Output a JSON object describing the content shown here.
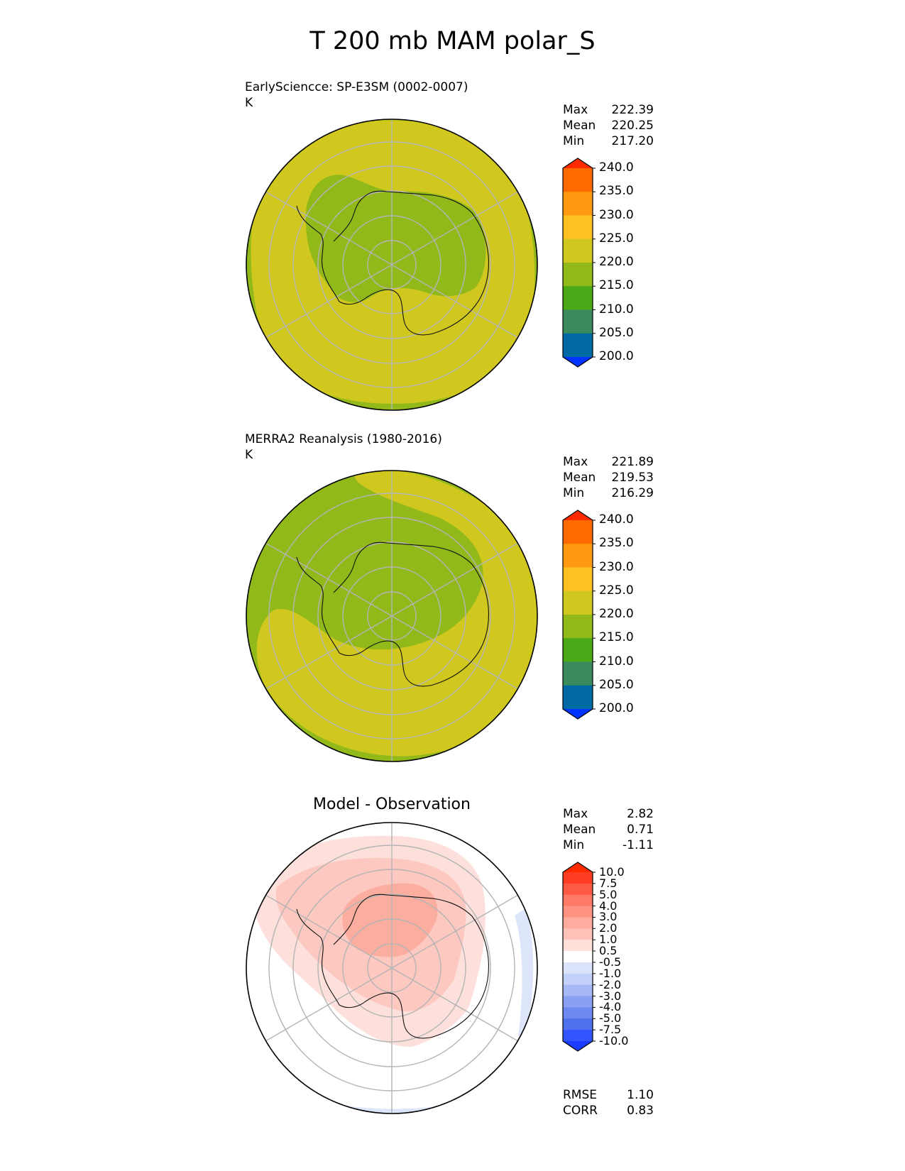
{
  "figure": {
    "title": "T 200 mb MAM polar_S"
  },
  "chart_data": [
    {
      "type": "heatmap",
      "projection": "south-polar-stereographic",
      "title": "EarlySciencce: SP-E3SM (0002-0007)",
      "units": "K",
      "stats": [
        {
          "label": "Max",
          "value": "222.39"
        },
        {
          "label": "Mean",
          "value": "220.25"
        },
        {
          "label": "Min",
          "value": "217.20"
        }
      ],
      "colorbar": {
        "ticks": [
          "240.0",
          "235.0",
          "230.0",
          "225.0",
          "220.0",
          "215.0",
          "210.0",
          "205.0",
          "200.0"
        ],
        "colors": [
          "#ff2a00",
          "#ff6a00",
          "#ff9a10",
          "#fdc124",
          "#d0c81e",
          "#92b91a",
          "#4aa715",
          "#3a8a5e",
          "#0169a3",
          "#0033ff"
        ]
      },
      "field_colors": {
        "outer": "#92b91a",
        "ring": "#d0c81e",
        "inner": "#92b91a"
      }
    },
    {
      "type": "heatmap",
      "projection": "south-polar-stereographic",
      "title": "MERRA2 Reanalysis (1980-2016)",
      "units": "K",
      "stats": [
        {
          "label": "Max",
          "value": "221.89"
        },
        {
          "label": "Mean",
          "value": "219.53"
        },
        {
          "label": "Min",
          "value": "216.29"
        }
      ],
      "colorbar": {
        "ticks": [
          "240.0",
          "235.0",
          "230.0",
          "225.0",
          "220.0",
          "215.0",
          "210.0",
          "205.0",
          "200.0"
        ],
        "colors": [
          "#ff2a00",
          "#ff6a00",
          "#ff9a10",
          "#fdc124",
          "#d0c81e",
          "#92b91a",
          "#4aa715",
          "#3a8a5e",
          "#0169a3",
          "#0033ff"
        ]
      },
      "field_colors": {
        "outer": "#92b91a",
        "ring": "#d0c81e",
        "inner": "#92b91a"
      }
    },
    {
      "type": "heatmap",
      "projection": "south-polar-stereographic",
      "title": "Model - Observation",
      "stats": [
        {
          "label": "Max",
          "value": "2.82"
        },
        {
          "label": "Mean",
          "value": "0.71"
        },
        {
          "label": "Min",
          "value": "-1.11"
        }
      ],
      "metrics": [
        {
          "label": "RMSE",
          "value": "1.10"
        },
        {
          "label": "CORR",
          "value": "0.83"
        }
      ],
      "colorbar": {
        "ticks": [
          "10.0",
          "7.5",
          "5.0",
          "4.0",
          "3.0",
          "2.0",
          "1.0",
          "0.5",
          "-0.5",
          "-1.0",
          "-2.0",
          "-3.0",
          "-4.0",
          "-5.0",
          "-7.5",
          "-10.0"
        ],
        "colors": [
          "#ff2a00",
          "#ff3d22",
          "#ff5a45",
          "#ff7a66",
          "#ff9282",
          "#ffab9d",
          "#ffc2b8",
          "#ffe0db",
          "#ffffff",
          "#dce4fb",
          "#c3d0f9",
          "#a6b8f6",
          "#8aa1f3",
          "#6e8af0",
          "#5071ed",
          "#3355ff",
          "#1a3cff"
        ]
      },
      "field_colors": {
        "positive_light": "#fde0dc",
        "positive_mid": "#fcc8c0",
        "positive_strong": "#fbae9f",
        "negative_light": "#dde5fa"
      }
    }
  ]
}
